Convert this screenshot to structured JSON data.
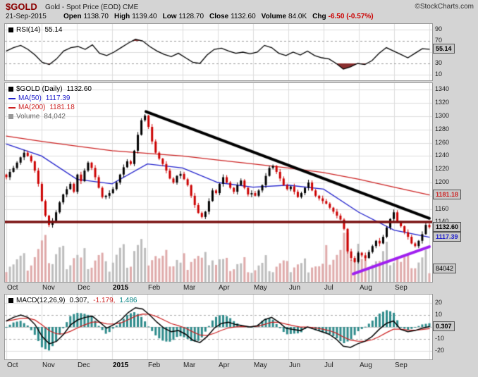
{
  "header": {
    "symbol": "$GOLD",
    "title": "Gold - Spot Price (EOD) CME",
    "credit": "©StockCharts.com",
    "date": "21-Sep-2015",
    "quote": [
      {
        "label": "Open",
        "value": "1138.70"
      },
      {
        "label": "High",
        "value": "1139.40"
      },
      {
        "label": "Low",
        "value": "1128.70"
      },
      {
        "label": "Close",
        "value": "1132.60"
      },
      {
        "label": "Volume",
        "value": "84.0K"
      },
      {
        "label": "Chg",
        "value": "-6.50 (-0.57%)"
      }
    ]
  },
  "legends": {
    "rsi": {
      "label": "RSI(14)",
      "value": "55.14"
    },
    "price": {
      "label": "$GOLD (Daily)",
      "value": "1132.60"
    },
    "ma50": {
      "label": "MA(50)",
      "value": "1117.39"
    },
    "ma200": {
      "label": "MA(200)",
      "value": "1181.18"
    },
    "volume": {
      "label": "Volume",
      "value": "84,042"
    },
    "macd": {
      "label": "MACD(12,26,9)",
      "macd": "0.307,",
      "signal": "-1.179,",
      "hist": "1.486"
    }
  },
  "axis": {
    "months": [
      "Oct",
      "Nov",
      "Dec",
      "2015",
      "Feb",
      "Mar",
      "Apr",
      "May",
      "Jun",
      "Jul",
      "Aug",
      "Sep"
    ],
    "price_ticks": [
      "1340",
      "1320",
      "1300",
      "1280",
      "1260",
      "1240",
      "1220",
      "1200",
      "1180",
      "1160",
      "1140"
    ],
    "boxes": {
      "rsi": "55.14",
      "ma200": "1181.18",
      "close": "1132.60",
      "ma50": "1117.39",
      "volume": "84042",
      "macd": "0.307"
    }
  },
  "colors": {
    "accent_symbol": "#8b0000",
    "candle_up": "#000000",
    "candle_down": "#cc0000",
    "ma50": "#2222cc",
    "ma200": "#cc2222",
    "volume_bar": "#bdbdbd",
    "volume_bar_down": "#dfaaaa",
    "trendline": "#000000",
    "support_line": "#7a1010",
    "purple_line": "#a020f0",
    "macd_hist": "#2e8b8b",
    "macd_line": "#000000",
    "macd_signal": "#cc2222",
    "rsi_line": "#000000",
    "rsi_fill": "#8b3030",
    "neg": "#cc0000",
    "grid": "#dcdcdc",
    "panel_bg": "#ffffff",
    "page_bg": "#d4d4d4"
  },
  "chart_data": [
    {
      "type": "line",
      "name": "RSI(14)",
      "ylim": [
        0,
        100
      ],
      "ticks": [
        90,
        70,
        50,
        30,
        10
      ],
      "thresholds": [
        70,
        30
      ],
      "last": 55.14,
      "values": [
        52,
        58,
        62,
        55,
        45,
        32,
        28,
        38,
        52,
        58,
        60,
        55,
        63,
        48,
        44,
        50,
        58,
        66,
        73,
        70,
        60,
        52,
        46,
        42,
        48,
        40,
        32,
        30,
        45,
        55,
        57,
        52,
        48,
        50,
        47,
        50,
        62,
        58,
        48,
        44,
        50,
        45,
        52,
        44,
        40,
        38,
        30,
        20,
        24,
        30,
        28,
        35,
        48,
        58,
        52,
        46,
        40,
        48,
        56,
        55.14
      ]
    },
    {
      "type": "candlestick",
      "name": "$GOLD Gold - Spot Price (EOD) Daily, Oct 2014 - Sep 2015",
      "ylim": [
        1050,
        1350
      ],
      "yticks_step": 20,
      "x_months": [
        "Oct",
        "Nov",
        "Dec",
        "2015",
        "Feb",
        "Mar",
        "Apr",
        "May",
        "Jun",
        "Jul",
        "Aug",
        "Sep"
      ],
      "close": [
        1208,
        1216,
        1222,
        1230,
        1238,
        1245,
        1240,
        1232,
        1218,
        1198,
        1172,
        1150,
        1136,
        1142,
        1155,
        1170,
        1182,
        1190,
        1198,
        1186,
        1212,
        1202,
        1218,
        1230,
        1222,
        1208,
        1192,
        1178,
        1180,
        1184,
        1190,
        1200,
        1212,
        1223,
        1232,
        1228,
        1248,
        1272,
        1294,
        1301,
        1284,
        1262,
        1245,
        1236,
        1228,
        1218,
        1206,
        1200,
        1210,
        1213,
        1205,
        1196,
        1180,
        1166,
        1154,
        1148,
        1156,
        1172,
        1188,
        1184,
        1198,
        1208,
        1200,
        1192,
        1186,
        1196,
        1203,
        1192,
        1182,
        1184,
        1180,
        1188,
        1196,
        1210,
        1222,
        1225,
        1216,
        1206,
        1196,
        1190,
        1194,
        1186,
        1178,
        1184,
        1192,
        1200,
        1188,
        1180,
        1176,
        1172,
        1168,
        1162,
        1156,
        1150,
        1144,
        1130,
        1096,
        1086,
        1080,
        1094,
        1090,
        1086,
        1095,
        1104,
        1112,
        1108,
        1118,
        1132,
        1145,
        1155,
        1140,
        1134,
        1125,
        1118,
        1108,
        1104,
        1112,
        1122,
        1136,
        1132.6
      ],
      "last_close": 1132.6,
      "ma50_monthly": [
        1258,
        1240,
        1205,
        1198,
        1228,
        1222,
        1200,
        1193,
        1196,
        1190,
        1155,
        1128,
        1117.39
      ],
      "ma200_monthly": [
        1270,
        1262,
        1255,
        1248,
        1244,
        1240,
        1234,
        1228,
        1222,
        1215,
        1205,
        1193,
        1181.18
      ],
      "ma50_last": 1117.39,
      "ma200_last": 1181.18,
      "volume_monthly_avg_k": [
        110,
        120,
        95,
        130,
        105,
        110,
        85,
        80,
        90,
        160,
        120,
        100
      ],
      "volume_last": 84042,
      "overlays": {
        "trendline": {
          "from": {
            "f": 0.33,
            "price": 1307
          },
          "to": {
            "f": 1.0,
            "price": 1146
          }
        },
        "support": {
          "price": 1140.5
        },
        "purple": {
          "from": {
            "f": 0.82,
            "price": 1062
          },
          "to": {
            "f": 1.01,
            "price": 1103
          }
        }
      }
    },
    {
      "type": "line",
      "name": "MACD(12,26,9)",
      "ylim": [
        -27,
        27
      ],
      "ticks": [
        20,
        10,
        0,
        -10,
        -20
      ],
      "last": {
        "macd": 0.307,
        "signal": -1.179,
        "hist": 1.486
      },
      "macd_values": [
        5,
        8,
        10,
        8,
        2,
        -8,
        -14,
        -12,
        -6,
        2,
        6,
        8,
        9,
        4,
        -1,
        2,
        6,
        12,
        16,
        15,
        10,
        4,
        -1,
        -4,
        -3,
        -6,
        -11,
        -13,
        -8,
        -1,
        3,
        4,
        2,
        1,
        0,
        1,
        6,
        8,
        4,
        -1,
        -2,
        -3,
        0,
        -2,
        -4,
        -6,
        -10,
        -16,
        -17,
        -14,
        -12,
        -8,
        -2,
        3,
        5,
        -2,
        -4,
        -3,
        -1,
        0.307
      ]
    }
  ]
}
